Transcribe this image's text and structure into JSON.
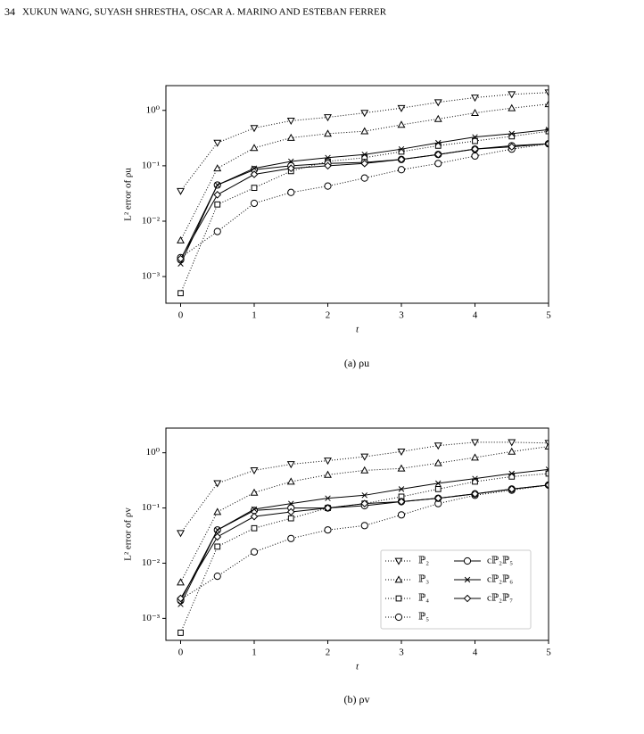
{
  "header": {
    "page_number": "34",
    "authors": "XUKUN WANG, SUYASH SHRESTHA, OSCAR A. MARINO AND ESTEBAN FERRER"
  },
  "captions": [
    "(a) ρu",
    "(b) ρv"
  ],
  "chart_data": [
    {
      "type": "line",
      "xlabel": "t",
      "ylabel": "L² error of ρu",
      "log_y": true,
      "xlim": [
        -0.2,
        5
      ],
      "xticks": [
        0,
        1,
        2,
        3,
        4,
        5
      ],
      "ylim": [
        0.00033,
        2.8
      ],
      "yticks": [
        {
          "value": 0.001,
          "label": "10⁻³"
        },
        {
          "value": 0.01,
          "label": "10⁻²"
        },
        {
          "value": 0.1,
          "label": "10⁻¹"
        },
        {
          "value": 1,
          "label": "10⁰"
        }
      ],
      "x": [
        0,
        0.5,
        1,
        1.5,
        2,
        2.5,
        3,
        3.5,
        4,
        4.5,
        5
      ],
      "series": [
        {
          "name": "ℙ₂",
          "color": "#000000",
          "dash": "dotted",
          "marker": "down-triangle",
          "values": [
            0.035,
            0.26,
            0.48,
            0.65,
            0.75,
            0.9,
            1.1,
            1.4,
            1.7,
            1.95,
            2.1
          ]
        },
        {
          "name": "ℙ₃",
          "color": "#000000",
          "dash": "dotted",
          "marker": "up-triangle",
          "values": [
            0.0045,
            0.09,
            0.21,
            0.32,
            0.38,
            0.42,
            0.55,
            0.7,
            0.9,
            1.1,
            1.3
          ]
        },
        {
          "name": "ℙ₄",
          "color": "#000000",
          "dash": "dotted",
          "marker": "square",
          "values": [
            0.0005,
            0.02,
            0.04,
            0.08,
            0.12,
            0.14,
            0.18,
            0.23,
            0.28,
            0.34,
            0.42
          ]
        },
        {
          "name": "ℙ₅",
          "color": "#000000",
          "dash": "dotted",
          "marker": "circle",
          "values": [
            0.0022,
            0.0065,
            0.021,
            0.033,
            0.043,
            0.06,
            0.085,
            0.11,
            0.15,
            0.2,
            0.25
          ]
        },
        {
          "name": "cℙ₂ℙ₅",
          "color": "#000000",
          "dash": "solid",
          "marker": "circle",
          "values": [
            0.002,
            0.045,
            0.085,
            0.1,
            0.11,
            0.115,
            0.13,
            0.16,
            0.2,
            0.23,
            0.25
          ]
        },
        {
          "name": "cℙ₂ℙ₆",
          "color": "#000000",
          "dash": "solid",
          "marker": "x",
          "values": [
            0.0017,
            0.045,
            0.09,
            0.12,
            0.14,
            0.16,
            0.2,
            0.26,
            0.33,
            0.38,
            0.45
          ]
        },
        {
          "name": "cℙ₂ℙ₇",
          "color": "#000000",
          "dash": "solid",
          "marker": "diamond",
          "values": [
            0.0021,
            0.03,
            0.07,
            0.09,
            0.1,
            0.11,
            0.13,
            0.16,
            0.2,
            0.22,
            0.25
          ]
        }
      ]
    },
    {
      "type": "line",
      "xlabel": "t",
      "ylabel": "L² error of ρv",
      "log_y": true,
      "legend": "lower right",
      "xlim": [
        -0.2,
        5
      ],
      "xticks": [
        0,
        1,
        2,
        3,
        4,
        5
      ],
      "ylim": [
        0.0004,
        2.8
      ],
      "yticks": [
        {
          "value": 0.001,
          "label": "10⁻³"
        },
        {
          "value": 0.01,
          "label": "10⁻²"
        },
        {
          "value": 0.1,
          "label": "10⁻¹"
        },
        {
          "value": 1,
          "label": "10⁰"
        }
      ],
      "x": [
        0,
        0.5,
        1,
        1.5,
        2,
        2.5,
        3,
        3.5,
        4,
        4.5,
        5
      ],
      "series": [
        {
          "name": "ℙ₂",
          "color": "#000000",
          "dash": "dotted",
          "marker": "down-triangle",
          "values": [
            0.035,
            0.28,
            0.48,
            0.62,
            0.72,
            0.85,
            1.05,
            1.35,
            1.55,
            1.55,
            1.5
          ]
        },
        {
          "name": "ℙ₃",
          "color": "#000000",
          "dash": "dotted",
          "marker": "up-triangle",
          "values": [
            0.0045,
            0.085,
            0.19,
            0.3,
            0.4,
            0.48,
            0.52,
            0.65,
            0.82,
            1.05,
            1.3
          ]
        },
        {
          "name": "ℙ₄",
          "color": "#000000",
          "dash": "dotted",
          "marker": "square",
          "values": [
            0.00055,
            0.02,
            0.043,
            0.065,
            0.1,
            0.12,
            0.16,
            0.22,
            0.3,
            0.37,
            0.42
          ]
        },
        {
          "name": "ℙ₅",
          "color": "#000000",
          "dash": "dotted",
          "marker": "circle",
          "values": [
            0.0022,
            0.0058,
            0.016,
            0.028,
            0.04,
            0.048,
            0.075,
            0.12,
            0.17,
            0.21,
            0.26
          ]
        },
        {
          "name": "cℙ₂ℙ₅",
          "color": "#000000",
          "dash": "solid",
          "marker": "circle",
          "values": [
            0.0021,
            0.04,
            0.09,
            0.1,
            0.1,
            0.11,
            0.13,
            0.15,
            0.18,
            0.22,
            0.26
          ]
        },
        {
          "name": "cℙ₂ℙ₆",
          "color": "#000000",
          "dash": "solid",
          "marker": "x",
          "values": [
            0.0018,
            0.04,
            0.095,
            0.12,
            0.15,
            0.17,
            0.22,
            0.28,
            0.34,
            0.42,
            0.5
          ]
        },
        {
          "name": "cℙ₂ℙ₇",
          "color": "#000000",
          "dash": "solid",
          "marker": "diamond",
          "values": [
            0.0023,
            0.03,
            0.07,
            0.085,
            0.1,
            0.12,
            0.13,
            0.15,
            0.18,
            0.22,
            0.26
          ]
        }
      ]
    }
  ]
}
